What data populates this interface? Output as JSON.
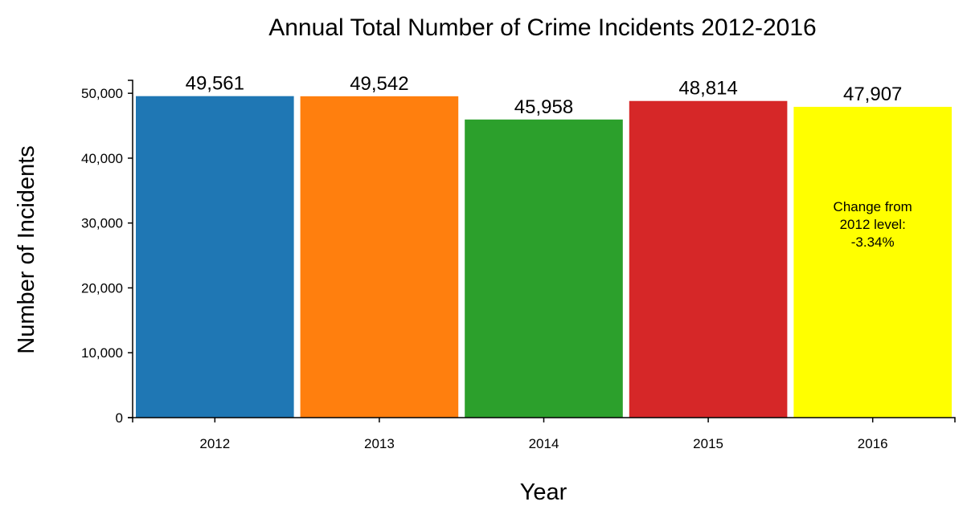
{
  "chart_data": {
    "type": "bar",
    "title": "Annual Total Number of Crime Incidents 2012-2016",
    "xlabel": "Year",
    "ylabel": "Number of Incidents",
    "categories": [
      "2012",
      "2013",
      "2014",
      "2015",
      "2016"
    ],
    "values": [
      49561,
      49542,
      45958,
      48814,
      47907
    ],
    "value_labels": [
      "49,561",
      "49,542",
      "45,958",
      "48,814",
      "47,907"
    ],
    "colors": [
      "#1f77b4",
      "#ff7f0e",
      "#2ca02c",
      "#d62728",
      "#ffff00"
    ],
    "ylim": [
      0,
      52000
    ],
    "yticks": [
      0,
      10000,
      20000,
      30000,
      40000,
      50000
    ],
    "ytick_labels": [
      "0",
      "10,000",
      "20,000",
      "30,000",
      "40,000",
      "50,000"
    ],
    "annotation": {
      "category": "2016",
      "lines": [
        "Change from",
        "2012 level:",
        "-3.34%"
      ]
    },
    "grid": false,
    "legend": "none"
  }
}
